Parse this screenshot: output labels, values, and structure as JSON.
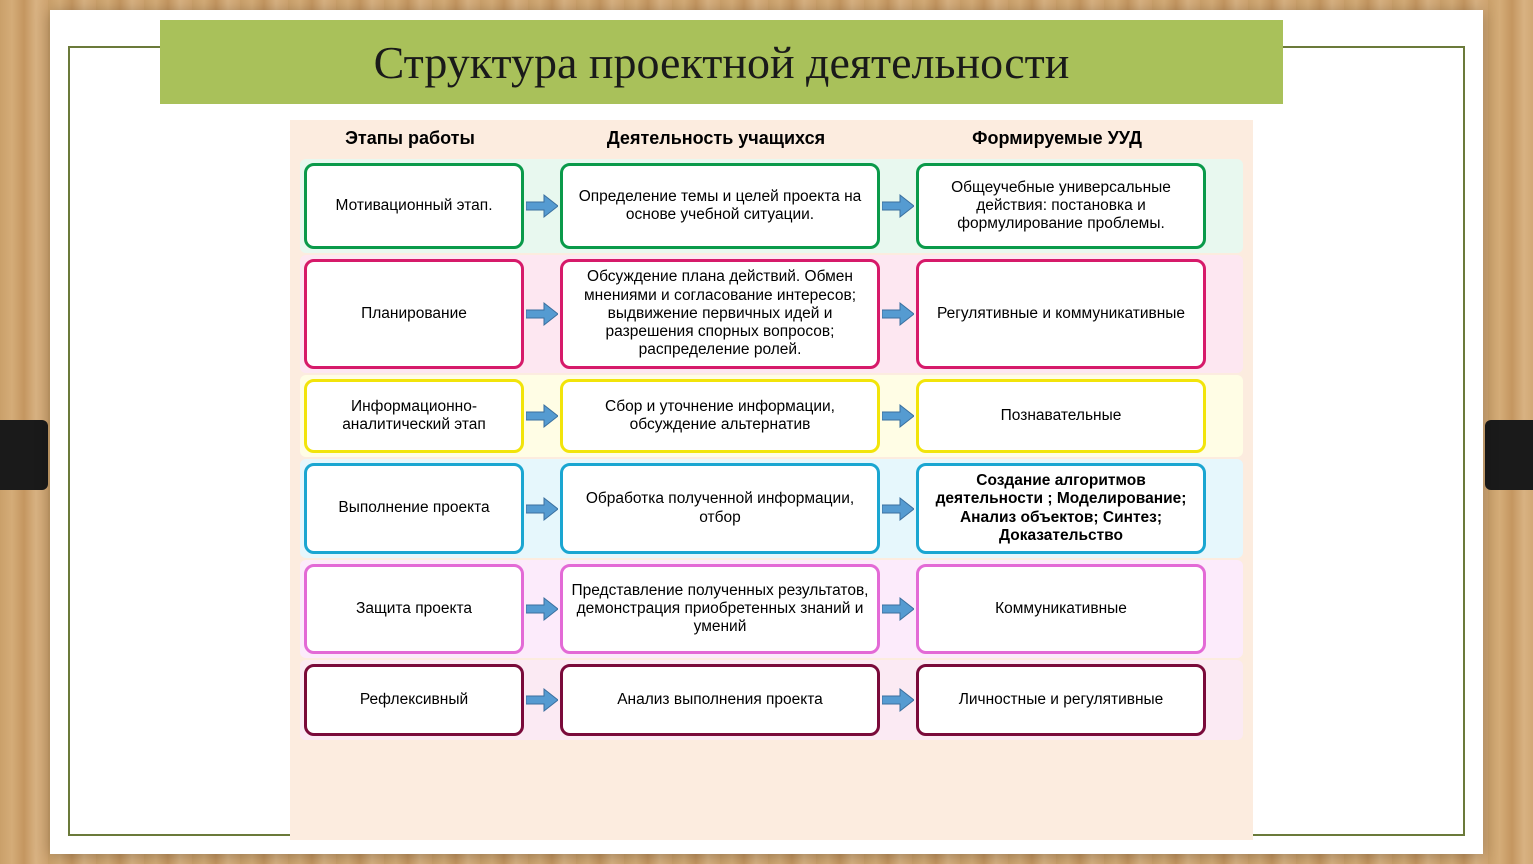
{
  "type": "flowchart",
  "slide_title": "Структура проектной деятельности",
  "background": {
    "wood_colors": [
      "#caa06a",
      "#d4ac78",
      "#c49660",
      "#d8b282",
      "#cfa470"
    ],
    "slide_bg": "#ffffff",
    "frame_color": "#6b7a3a",
    "title_banner_bg": "#a9c15a",
    "title_color": "#1a1a1a",
    "title_fontsize": 46,
    "diagram_bg": "#fcecdf",
    "side_tab_color": "#1a1a1a"
  },
  "arrow": {
    "fill": "#559bd1",
    "stroke": "#3a6f9e"
  },
  "columns": [
    {
      "label": "Этапы работы"
    },
    {
      "label": "Деятельность учащихся"
    },
    {
      "label": "Формируемые УУД"
    }
  ],
  "rows": [
    {
      "row_bg": "#e8f8ef",
      "border_color": "#0a9a4a",
      "border_width": 3,
      "min_height": 86,
      "c1": "Мотивационный этап.",
      "c2": "Определение темы и целей проекта  на основе учебной ситуации.",
      "c3": "Общеучебные универсальные действия:  постановка и формулирование проблемы.",
      "c3_bold": false
    },
    {
      "row_bg": "#fde7f1",
      "border_color": "#d61a6a",
      "border_width": 3,
      "min_height": 110,
      "c1": "Планирование",
      "c2": "Обсуждение плана действий. Обмен мнениями и согласование интересов; выдвижение первичных идей и разрешения спорных вопросов;  распределение  ролей.",
      "c3": "Регулятивные и коммуникативные",
      "c3_bold": false
    },
    {
      "row_bg": "#fffde5",
      "border_color": "#f2e40a",
      "border_width": 3,
      "min_height": 74,
      "c1": "Информационно-аналитический этап",
      "c2": "Сбор и уточнение информации, обсуждение альтернатив",
      "c3": "Познавательные",
      "c3_bold": false
    },
    {
      "row_bg": "#e6f7fc",
      "border_color": "#1aa6d1",
      "border_width": 3,
      "min_height": 90,
      "c1": "Выполнение проекта",
      "c2": "Обработка полученной информации, отбор",
      "c3": "Создание алгоритмов деятельности ; Моделирование; Анализ объектов; Синтез; Доказательство",
      "c3_bold": true
    },
    {
      "row_bg": "#fcebfb",
      "border_color": "#e36ad6",
      "border_width": 3,
      "min_height": 90,
      "c1": "Защита   проекта",
      "c2": "Представление полученных результатов, демонстрация приобретенных знаний и умений",
      "c3": "Коммуникативные",
      "c3_bold": false
    },
    {
      "row_bg": "#fbeaf3",
      "border_color": "#7a0a3a",
      "border_width": 3,
      "min_height": 72,
      "c1": "Рефлексивный",
      "c2": "Анализ выполнения проекта",
      "c3": "Личностные и регулятивные",
      "c3_bold": false
    }
  ]
}
